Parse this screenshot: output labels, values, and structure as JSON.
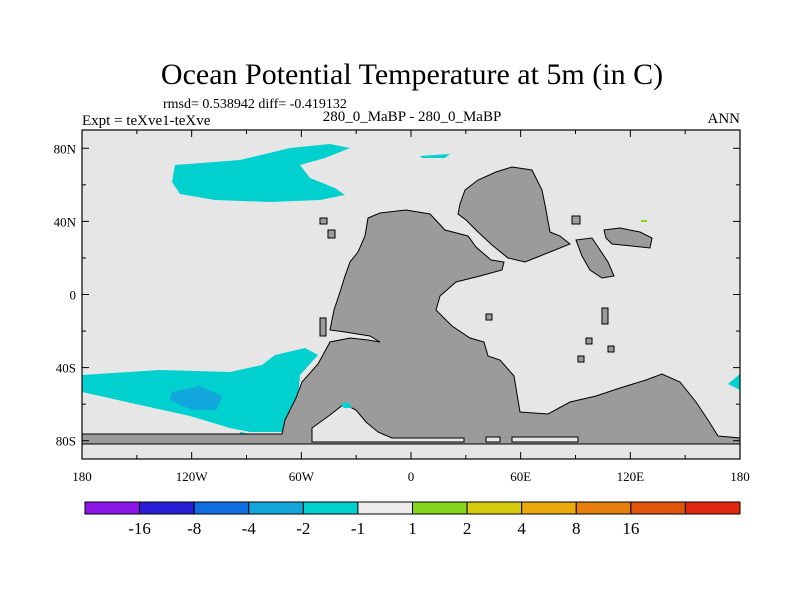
{
  "chart_data": {
    "type": "heatmap",
    "title": "Ocean Potential Temperature at 5m (in C)",
    "stats_line": "rmsd= 0.538942 diff= -0.419132",
    "left_label": "Expt = teXve1-teXve",
    "center_label": "280_0_MaBP - 280_0_MaBP",
    "right_label": "ANN",
    "x_axis": {
      "range": [
        -180,
        180
      ],
      "ticks": [
        {
          "value": -180,
          "label": "180"
        },
        {
          "value": -120,
          "label": "120W"
        },
        {
          "value": -60,
          "label": "60W"
        },
        {
          "value": 0,
          "label": "0"
        },
        {
          "value": 60,
          "label": "60E"
        },
        {
          "value": 120,
          "label": "120E"
        },
        {
          "value": 180,
          "label": "180"
        }
      ]
    },
    "y_axis": {
      "range": [
        -90,
        90
      ],
      "ticks": [
        {
          "value": 80,
          "label": "80N"
        },
        {
          "value": 40,
          "label": "40N"
        },
        {
          "value": 0,
          "label": "0"
        },
        {
          "value": -40,
          "label": "40S"
        },
        {
          "value": -80,
          "label": "80S"
        }
      ]
    },
    "colorbar": {
      "colors": [
        "#8a17e6",
        "#2a1fd6",
        "#0f6fe0",
        "#12a7dc",
        "#00d1cf",
        "#ececec",
        "#86d61b",
        "#d6cb0f",
        "#e9ab0c",
        "#e67f0c",
        "#e2560c",
        "#e0280f"
      ],
      "labels": [
        "-16",
        "-8",
        "-4",
        "-2",
        "-1",
        "1",
        "2",
        "4",
        "8",
        "16"
      ]
    },
    "colors": {
      "background": "#e6e6e6",
      "land": "#9b9b9b",
      "anomaly_neg_1_2": "#00d1cf",
      "anomaly_neg_2_4": "#12a7dc",
      "anomaly_pos_1_2": "#86d61b"
    }
  }
}
